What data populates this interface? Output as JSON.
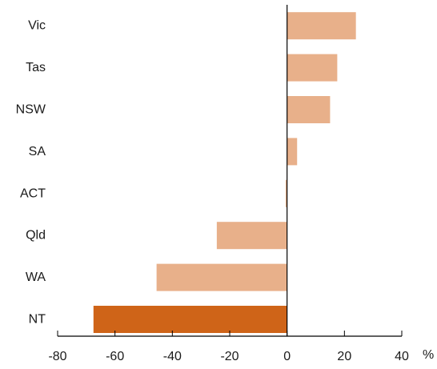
{
  "chart_data": {
    "type": "bar",
    "orientation": "horizontal",
    "title": "",
    "xlabel": "",
    "ylabel": "",
    "x_unit": "%",
    "xlim": [
      -80,
      40
    ],
    "xticks": [
      "-80",
      "-60",
      "-40",
      "-20",
      "0",
      "20",
      "40"
    ],
    "grid": false,
    "categories": [
      "Vic",
      "Tas",
      "NSW",
      "SA",
      "ACT",
      "Qld",
      "WA",
      "NT"
    ],
    "values": [
      24,
      17.5,
      15,
      3.5,
      -0.5,
      -24.5,
      -45.5,
      -67.5
    ],
    "colors": {
      "default": "#e8b08a",
      "highlight": "#cf6418",
      "axis": "#000000"
    },
    "highlight_category": "NT"
  }
}
